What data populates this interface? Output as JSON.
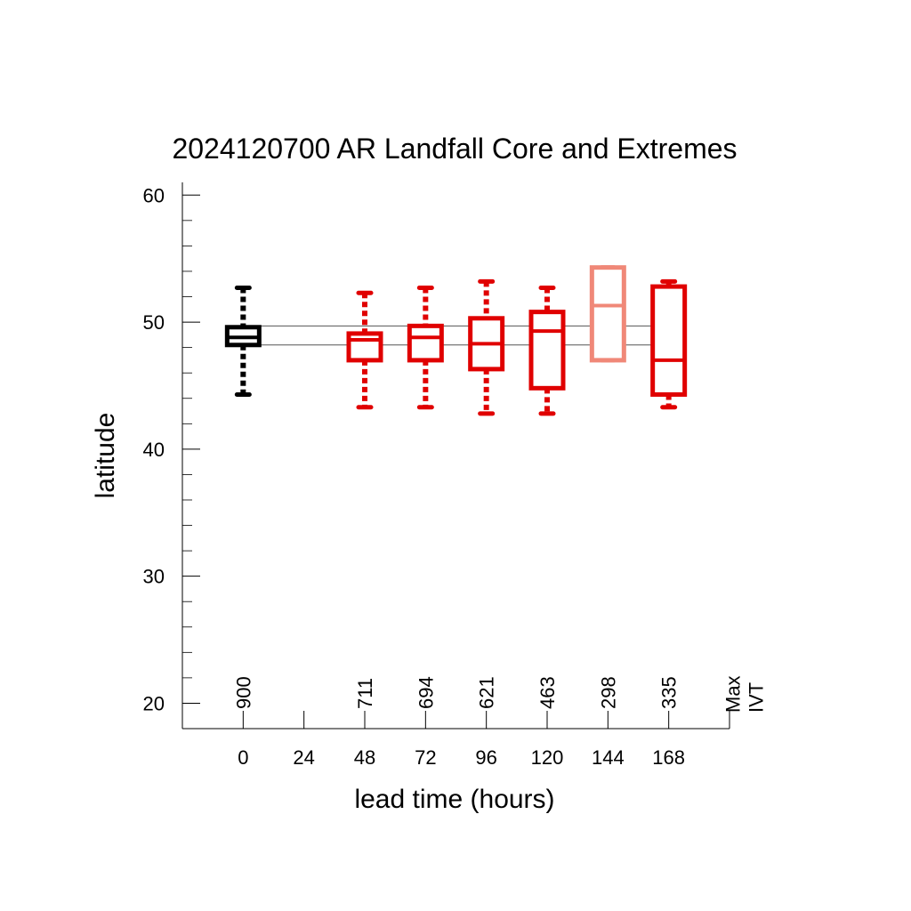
{
  "chart_data": {
    "type": "boxplot",
    "title": "2024120700 AR Landfall Core and Extremes",
    "xlabel": "lead time (hours)",
    "ylabel": "latitude",
    "xlim": [
      -24,
      192
    ],
    "ylim": [
      18,
      61
    ],
    "x_ticks": [
      0,
      24,
      48,
      72,
      96,
      120,
      144,
      168
    ],
    "y_ticks": [
      20,
      30,
      40,
      50,
      60
    ],
    "y_minor_step": 2,
    "grid": false,
    "legend": "none",
    "corner_label": "Max\nIVT",
    "reference_lines": {
      "upper": 49.7,
      "lower": 48.2
    },
    "boxes": [
      {
        "lead": 0,
        "count": "900",
        "min": 44.3,
        "q1": 48.2,
        "median": 48.8,
        "q3": 49.6,
        "max": 52.7,
        "color": "#000000"
      },
      {
        "lead": 48,
        "count": "711",
        "min": 43.3,
        "q1": 47.0,
        "median": 48.6,
        "q3": 49.1,
        "max": 52.3,
        "color": "#e00000"
      },
      {
        "lead": 72,
        "count": "694",
        "min": 43.3,
        "q1": 47.0,
        "median": 48.8,
        "q3": 49.7,
        "max": 52.7,
        "color": "#e00000"
      },
      {
        "lead": 96,
        "count": "621",
        "min": 42.8,
        "q1": 46.3,
        "median": 48.3,
        "q3": 50.3,
        "max": 53.2,
        "color": "#e00000"
      },
      {
        "lead": 120,
        "count": "463",
        "min": 42.8,
        "q1": 44.8,
        "median": 49.3,
        "q3": 50.8,
        "max": 52.7,
        "color": "#e00000"
      },
      {
        "lead": 144,
        "count": "298",
        "min": 47.0,
        "q1": 47.0,
        "median": 51.3,
        "q3": 54.3,
        "max": 54.3,
        "color": "#f08878"
      },
      {
        "lead": 168,
        "count": "335",
        "min": 43.3,
        "q1": 44.3,
        "median": 47.0,
        "q3": 52.8,
        "max": 53.2,
        "color": "#e00000"
      }
    ]
  }
}
